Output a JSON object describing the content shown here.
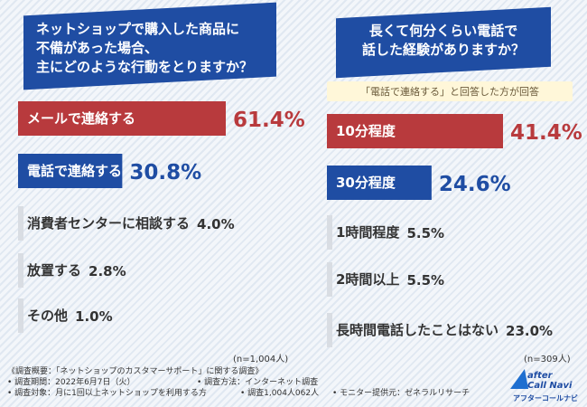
{
  "chart_data": [
    {
      "type": "bar",
      "orientation": "horizontal",
      "title_lines": [
        "ネットショップで購入した商品に",
        "不備があった場合、",
        "主にどのような行動をとりますか？"
      ],
      "categories": [
        "メールで連絡する",
        "電話で連絡する",
        "消費者センターに相談する",
        "放置する",
        "その他"
      ],
      "values": [
        61.4,
        30.8,
        4.0,
        2.8,
        1.0
      ],
      "value_labels": [
        "61.4%",
        "30.8%",
        "4.0%",
        "2.8%",
        "1.0%"
      ],
      "bar_colors": [
        "#b83a3d",
        "#1f4da3",
        "#d9dde3",
        "#d9dde3",
        "#d9dde3"
      ],
      "n_label": "(n=1,004人)",
      "xlim": [
        0,
        100
      ]
    },
    {
      "type": "bar",
      "orientation": "horizontal",
      "title_lines": [
        "長くて何分くらい電話で",
        "話した経験がありますか？"
      ],
      "subtitle": "「電話で連絡する」と回答した方が回答",
      "categories": [
        "10分程度",
        "30分程度",
        "1時間程度",
        "2時間以上",
        "長時間電話したことはない"
      ],
      "values": [
        41.4,
        24.6,
        5.5,
        5.5,
        23.0
      ],
      "value_labels": [
        "41.4%",
        "24.6%",
        "5.5%",
        "5.5%",
        "23.0%"
      ],
      "bar_colors": [
        "#b83a3d",
        "#1f4da3",
        "#d9dde3",
        "#d9dde3",
        "#d9dde3"
      ],
      "n_label": "(n=309人)",
      "xlim": [
        0,
        100
      ]
    }
  ],
  "footer": {
    "lines_left": [
      "《調査概要：「ネットショップのカスタマーサポート」に関する調査》",
      "• 調査期間：2022年6月7日（火）",
      "• 調査対象：月に1回以上ネットショップを利用する方"
    ],
    "method": "• 調査方法：インターネット調査",
    "people": "• 調査1,004人062人",
    "provider": "• モニター提供元：ゼネラルリサーチ"
  },
  "logo": {
    "line1": "after",
    "line2": "Call Navi",
    "sub": "アフターコールナビ"
  }
}
